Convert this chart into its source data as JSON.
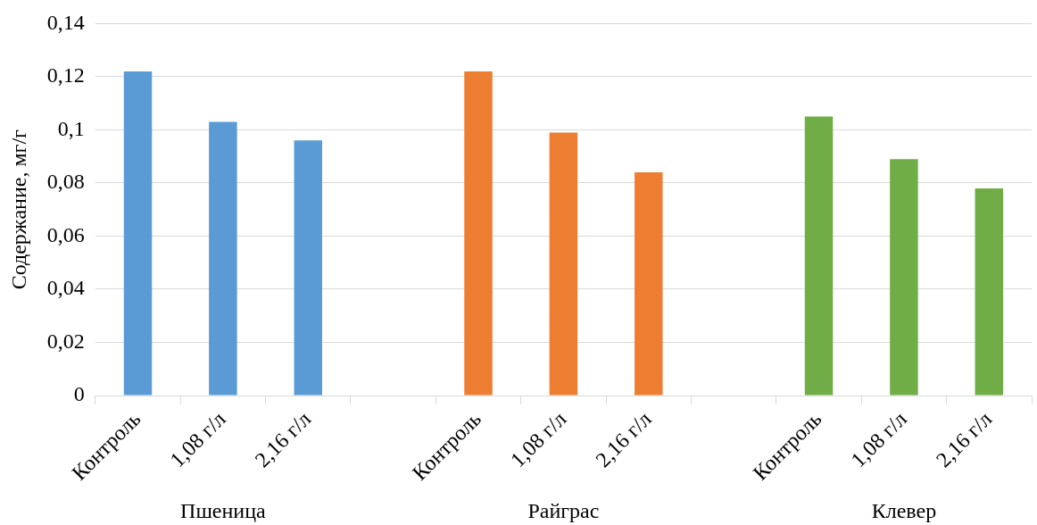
{
  "chart_data": {
    "type": "bar",
    "ylabel": "Содержание, мг/г",
    "categories": [
      "Контроль",
      "1,08 г/л",
      "2,16 г/л",
      null,
      "Контроль",
      "1,08 г/л",
      "2,16 г/л",
      null,
      "Контроль",
      "1,08 г/л",
      "2,16 г/л"
    ],
    "series": [
      {
        "color": "#5b9bd5",
        "values": [
          0.122,
          0.103,
          0.096,
          null,
          null,
          null,
          null,
          null,
          null,
          null,
          null
        ]
      },
      {
        "color": "#ed7d31",
        "values": [
          null,
          null,
          null,
          null,
          0.122,
          0.099,
          0.084,
          null,
          null,
          null,
          null
        ]
      },
      {
        "color": "#70ad47",
        "values": [
          null,
          null,
          null,
          null,
          null,
          null,
          null,
          null,
          0.105,
          0.089,
          0.078
        ]
      }
    ],
    "annotations": [
      "Пшеница",
      "Райграс",
      "Клевер"
    ],
    "ylim": [
      0,
      0.14
    ],
    "yticks": [
      0,
      {
        "value": 0.02,
        "label": "0,02"
      },
      {
        "value": 0.04,
        "label": "0,04"
      },
      {
        "value": 0.06,
        "label": "0,06"
      },
      {
        "value": 0.08,
        "label": "0,08"
      },
      {
        "value": 0.1,
        "label": "0,1"
      },
      {
        "value": 0.12,
        "label": "0,12"
      },
      {
        "value": 0.14,
        "label": "0,14"
      }
    ],
    "grid": "y",
    "legend": false
  }
}
